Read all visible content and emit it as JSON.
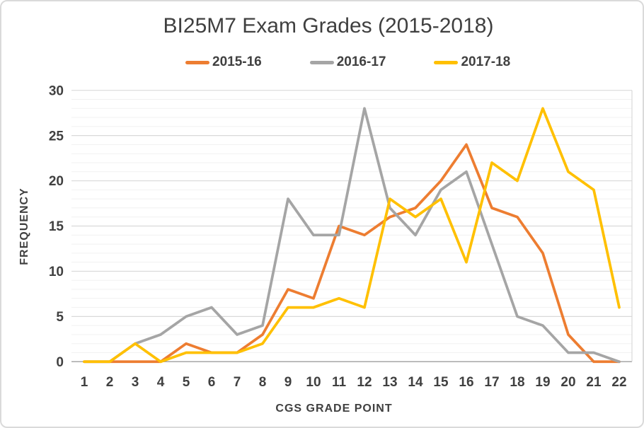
{
  "title": "BI25M7 Exam Grades (2015-2018)",
  "axes": {
    "x_title": "CGS GRADE POINT",
    "y_title": "FREQUENCY",
    "y_tick_labels": [
      "0",
      "5",
      "10",
      "15",
      "20",
      "25",
      "30"
    ]
  },
  "chart_data": {
    "type": "line",
    "title": "BI25M7 Exam Grades (2015-2018)",
    "categories": [
      1,
      2,
      3,
      4,
      5,
      6,
      7,
      8,
      9,
      10,
      11,
      12,
      13,
      14,
      15,
      16,
      17,
      18,
      19,
      20,
      21,
      22
    ],
    "series": [
      {
        "name": "2015-16",
        "color": "#ED7D31",
        "values": [
          0,
          0,
          0,
          0,
          2,
          1,
          1,
          3,
          8,
          7,
          15,
          14,
          16,
          17,
          20,
          24,
          17,
          16,
          12,
          3,
          0,
          0
        ]
      },
      {
        "name": "2016-17",
        "color": "#A5A5A5",
        "values": [
          0,
          0,
          2,
          3,
          5,
          6,
          3,
          4,
          18,
          14,
          14,
          28,
          17,
          14,
          19,
          21,
          13,
          5,
          4,
          1,
          1,
          0
        ]
      },
      {
        "name": "2017-18",
        "color": "#FFC000",
        "values": [
          0,
          0,
          2,
          0,
          1,
          1,
          1,
          2,
          6,
          6,
          7,
          6,
          18,
          16,
          18,
          11,
          22,
          20,
          28,
          21,
          19,
          6
        ]
      }
    ],
    "xlabel": "CGS GRADE POINT",
    "ylabel": "FREQUENCY",
    "ylim": [
      0,
      30
    ],
    "y_major_step": 5,
    "y_minor_step": 1,
    "grid": "horizontal-major-and-minor",
    "legend_position": "top",
    "colors": {
      "text": "#404040",
      "axis_line": "#a6a6a6",
      "major_grid": "#d9d9d9",
      "minor_grid": "#f1f1f1"
    }
  }
}
